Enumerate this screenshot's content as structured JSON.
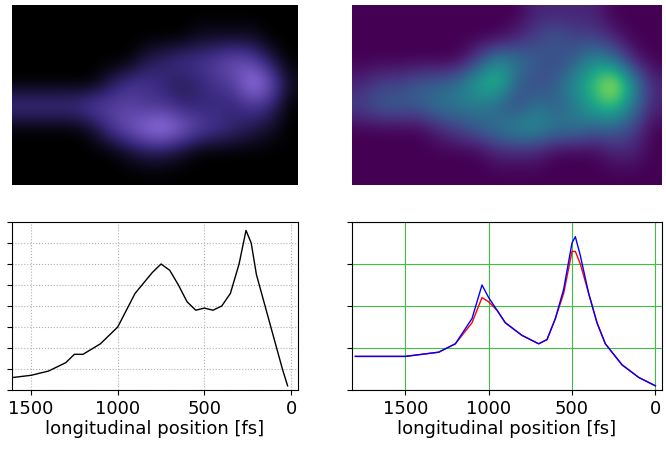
{
  "chart_data": [
    {
      "type": "heatmap",
      "tick_labels": false,
      "color_range": [
        0,
        1
      ],
      "cells": [
        [
          0,
          0,
          0,
          0,
          0,
          0,
          0,
          0,
          0,
          0,
          0,
          0,
          0,
          0,
          0,
          0
        ],
        [
          0,
          0,
          0,
          0,
          0,
          0,
          0,
          0,
          0,
          0,
          0.1,
          0.1,
          0.1,
          0.1,
          0,
          0
        ],
        [
          0,
          0,
          0,
          0,
          0,
          0,
          0,
          0.2,
          0.3,
          0.4,
          0.4,
          0.5,
          0.6,
          0.5,
          0.2,
          0
        ],
        [
          0,
          0,
          0,
          0,
          0,
          0.2,
          0.4,
          0.4,
          0.3,
          0.2,
          0.3,
          0.4,
          0.5,
          0.9,
          0.6,
          0.1
        ],
        [
          0.4,
          0.4,
          0.4,
          0.4,
          0.5,
          0.5,
          0.5,
          0.4,
          0.4,
          0.3,
          0.3,
          0.3,
          0.3,
          0.4,
          0.3,
          0
        ],
        [
          0,
          0,
          0,
          0,
          0.1,
          0.4,
          0.6,
          0.8,
          0.9,
          0.7,
          0.5,
          0.4,
          0.3,
          0.2,
          0.1,
          0
        ],
        [
          0,
          0,
          0,
          0,
          0,
          0,
          0.1,
          0.2,
          0.2,
          0.1,
          0,
          0,
          0,
          0,
          0,
          0
        ],
        [
          0,
          0,
          0,
          0,
          0,
          0,
          0,
          0,
          0,
          0,
          0,
          0,
          0,
          0,
          0,
          0
        ]
      ]
    },
    {
      "type": "heatmap",
      "tick_labels": false,
      "color_range": [
        0,
        1
      ],
      "cells": [
        [
          0,
          0,
          0,
          0,
          0,
          0,
          0,
          0,
          0,
          0.1,
          0.1,
          0.1,
          0.1,
          0,
          0,
          0
        ],
        [
          0,
          0,
          0,
          0,
          0,
          0,
          0,
          0,
          0.1,
          0.2,
          0.3,
          0.2,
          0.2,
          0.1,
          0,
          0
        ],
        [
          0,
          0,
          0,
          0,
          0,
          0,
          0.2,
          0.5,
          0.4,
          0.3,
          0.2,
          0.3,
          0.5,
          0.4,
          0.1,
          0
        ],
        [
          0.1,
          0.2,
          0.2,
          0.3,
          0.3,
          0.4,
          0.6,
          0.7,
          0.3,
          0.2,
          0.3,
          0.5,
          0.7,
          1.0,
          0.5,
          0.1
        ],
        [
          0.2,
          0.3,
          0.3,
          0.3,
          0.4,
          0.4,
          0.4,
          0.3,
          0.2,
          0.4,
          0.3,
          0.4,
          0.6,
          0.7,
          0.4,
          0.1
        ],
        [
          0,
          0,
          0,
          0,
          0.1,
          0.2,
          0.3,
          0.4,
          0.5,
          0.5,
          0.4,
          0.4,
          0.3,
          0.3,
          0.2,
          0
        ],
        [
          0,
          0,
          0,
          0,
          0,
          0,
          0,
          0.1,
          0.1,
          0.1,
          0,
          0,
          0,
          0.1,
          0.1,
          0
        ],
        [
          0,
          0,
          0,
          0,
          0,
          0,
          0,
          0,
          0,
          0,
          0,
          0,
          0,
          0,
          0,
          0
        ]
      ]
    },
    {
      "type": "line",
      "x_label": "longitudinal position [fs]",
      "grid": true,
      "tick_labels": "x",
      "xlim": [
        1610,
        -40
      ],
      "xticks": [
        1500,
        1000,
        500,
        0
      ],
      "ylim": [
        0,
        8
      ],
      "yticks": [
        0,
        1,
        2,
        3,
        4,
        5,
        6,
        7,
        8
      ],
      "x": [
        1600,
        1500,
        1400,
        1300,
        1250,
        1200,
        1100,
        1000,
        900,
        800,
        750,
        700,
        650,
        600,
        550,
        500,
        450,
        400,
        350,
        300,
        260,
        230,
        200,
        150,
        100,
        50,
        20
      ],
      "series": [
        {
          "color": "#000000",
          "values": [
            0.6,
            0.7,
            0.9,
            1.3,
            1.7,
            1.7,
            2.2,
            3.0,
            4.6,
            5.6,
            6.0,
            5.7,
            5.0,
            4.2,
            3.8,
            3.9,
            3.8,
            4.0,
            4.6,
            6.0,
            7.6,
            7.0,
            5.5,
            4.0,
            2.5,
            1.0,
            0.2
          ]
        }
      ]
    },
    {
      "type": "line",
      "x_label": "longitudinal position [fs]",
      "grid": true,
      "tick_labels": "x",
      "xlim": [
        1820,
        -40
      ],
      "xticks": [
        1500,
        1000,
        500,
        0
      ],
      "ylim": [
        0,
        4
      ],
      "yticks": [
        0,
        1,
        2,
        3,
        4
      ],
      "x": [
        1800,
        1500,
        1300,
        1200,
        1100,
        1040,
        1000,
        950,
        900,
        800,
        700,
        650,
        600,
        550,
        500,
        480,
        450,
        400,
        350,
        300,
        200,
        100,
        0
      ],
      "series": [
        {
          "color": "#ff0000",
          "values": [
            0.8,
            0.8,
            0.9,
            1.1,
            1.6,
            2.2,
            2.1,
            1.9,
            1.6,
            1.3,
            1.1,
            1.2,
            1.7,
            2.3,
            3.3,
            3.3,
            3.0,
            2.3,
            1.6,
            1.1,
            0.6,
            0.3,
            0.1
          ]
        },
        {
          "color": "#0000ff",
          "values": [
            0.8,
            0.8,
            0.9,
            1.1,
            1.7,
            2.5,
            2.2,
            1.9,
            1.6,
            1.3,
            1.1,
            1.2,
            1.7,
            2.4,
            3.5,
            3.65,
            3.2,
            2.3,
            1.6,
            1.1,
            0.6,
            0.3,
            0.1
          ]
        }
      ]
    }
  ]
}
